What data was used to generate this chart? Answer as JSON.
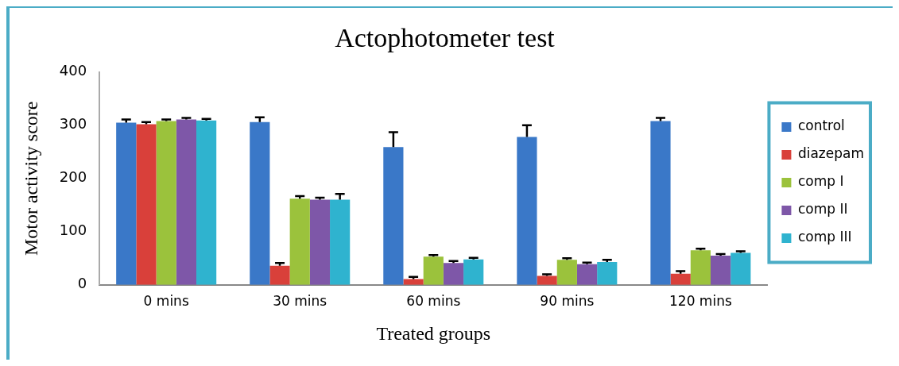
{
  "chart_data": {
    "type": "bar",
    "title": "Actophotometer test",
    "xlabel": "Treated groups",
    "ylabel": "Motor activity score",
    "categories": [
      "0 mins",
      "30 mins",
      "60 mins",
      "90 mins",
      "120 mins"
    ],
    "series": [
      {
        "name": "control",
        "color": "#3a78c8",
        "values": [
          305,
          306,
          259,
          278,
          308
        ],
        "errors": [
          6,
          9,
          28,
          22,
          6
        ]
      },
      {
        "name": "diazepam",
        "color": "#d9403a",
        "values": [
          302,
          36,
          11,
          17,
          21
        ],
        "errors": [
          4,
          5,
          4,
          3,
          5
        ]
      },
      {
        "name": "comp I",
        "color": "#9bc23c",
        "values": [
          308,
          162,
          53,
          47,
          65
        ],
        "errors": [
          3,
          5,
          3,
          3,
          3
        ]
      },
      {
        "name": "comp II",
        "color": "#7e57a8",
        "values": [
          311,
          160,
          41,
          39,
          55
        ],
        "errors": [
          3,
          4,
          4,
          3,
          3
        ]
      },
      {
        "name": "comp III",
        "color": "#2fb3cf",
        "values": [
          309,
          160,
          48,
          43,
          60
        ],
        "errors": [
          3,
          11,
          3,
          4,
          3
        ]
      }
    ],
    "ylim": [
      0,
      400
    ],
    "yticks": [
      0,
      100,
      200,
      300,
      400
    ],
    "grid": false,
    "legend": "right"
  }
}
